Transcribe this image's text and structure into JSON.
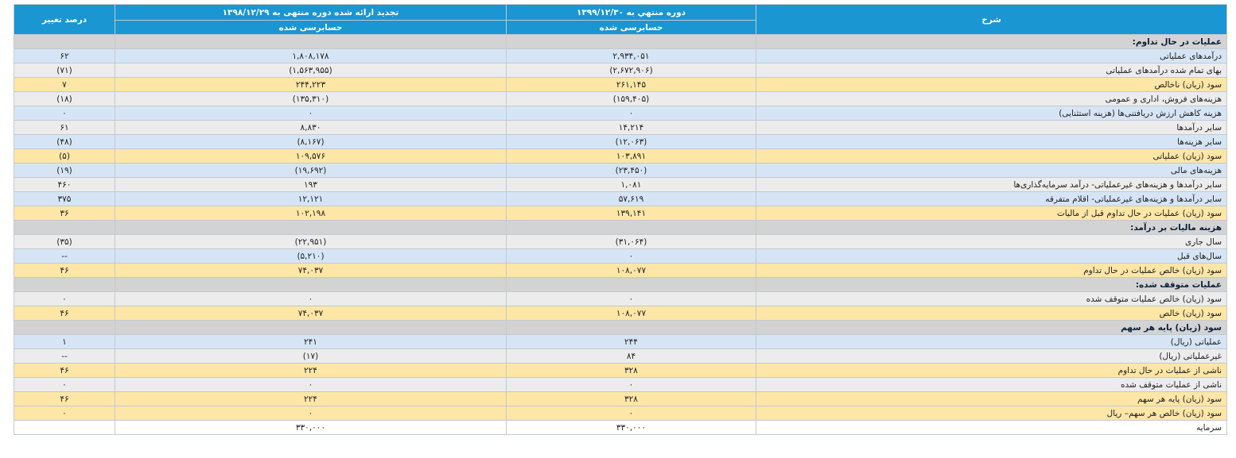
{
  "header": {
    "desc_label": "شرح",
    "current_period": "دوره منتهي به ۱۳۹۹/۱۲/۳۰",
    "previous_period": "تجدید ارائه شده دوره منتهی به ۱۳۹۸/۱۲/۲۹",
    "change_label": "درصد تغییر",
    "current_audit": "حسابرسی شده",
    "previous_audit": "حسابرسی شده"
  },
  "rows": [
    {
      "kind": "section",
      "desc": "عملیات در حال تداوم:",
      "cur": "",
      "prev": "",
      "pct": ""
    },
    {
      "kind": "blue",
      "desc": "درآمدهای عملیاتی",
      "cur": "۲,۹۳۴,۰۵۱",
      "prev": "۱,۸۰۸,۱۷۸",
      "pct": "۶۲"
    },
    {
      "kind": "gray",
      "desc": "بهای تمام شده درآمدهای عملیاتی",
      "cur": "(۲,۶۷۲,۹۰۶)",
      "prev": "(۱,۵۶۳,۹۵۵)",
      "pct": "(۷۱)"
    },
    {
      "kind": "yellow",
      "desc": "سود (زیان) ناخالص",
      "cur": "۲۶۱,۱۴۵",
      "prev": "۲۴۴,۲۲۳",
      "pct": "۷"
    },
    {
      "kind": "gray",
      "desc": "هزینه‌های فروش، اداری و عمومی",
      "cur": "(۱۵۹,۴۰۵)",
      "prev": "(۱۳۵,۳۱۰)",
      "pct": "(۱۸)"
    },
    {
      "kind": "blue",
      "desc": "هزینه کاهش ارزش دریافتنی‌ها (هزینه استثنایی)",
      "cur": "۰",
      "prev": "۰",
      "pct": "۰"
    },
    {
      "kind": "gray",
      "desc": "سایر درآمدها",
      "cur": "۱۴,۲۱۴",
      "prev": "۸,۸۳۰",
      "pct": "۶۱"
    },
    {
      "kind": "blue",
      "desc": "سایر هزینه‌ها",
      "cur": "(۱۲,۰۶۳)",
      "prev": "(۸,۱۶۷)",
      "pct": "(۴۸)"
    },
    {
      "kind": "yellow",
      "desc": "سود (زیان) عملیاتی",
      "cur": "۱۰۳,۸۹۱",
      "prev": "۱۰۹,۵۷۶",
      "pct": "(۵)"
    },
    {
      "kind": "blue",
      "desc": "هزینه‌های مالی",
      "cur": "(۲۳,۴۵۰)",
      "prev": "(۱۹,۶۹۲)",
      "pct": "(۱۹)"
    },
    {
      "kind": "gray",
      "desc": "سایر درآمدها و هزینه‌های غیرعملیاتی- درآمد سرمایه‌گذاری‌ها",
      "cur": "۱,۰۸۱",
      "prev": "۱۹۳",
      "pct": "۴۶۰"
    },
    {
      "kind": "blue",
      "desc": "سایر درآمدها و هزینه‌های غیرعملیاتی- اقلام متفرقه",
      "cur": "۵۷,۶۱۹",
      "prev": "۱۲,۱۲۱",
      "pct": "۳۷۵"
    },
    {
      "kind": "yellow",
      "desc": "سود (زیان) عملیات در حال تداوم قبل از مالیات",
      "cur": "۱۳۹,۱۴۱",
      "prev": "۱۰۲,۱۹۸",
      "pct": "۳۶"
    },
    {
      "kind": "section",
      "desc": "هزینه مالیات بر درآمد:",
      "cur": "",
      "prev": "",
      "pct": ""
    },
    {
      "kind": "gray",
      "desc": "سال جاری",
      "cur": "(۳۱,۰۶۴)",
      "prev": "(۲۲,۹۵۱)",
      "pct": "(۳۵)"
    },
    {
      "kind": "blue",
      "desc": "سال‌های قبل",
      "cur": "۰",
      "prev": "(۵,۲۱۰)",
      "pct": "--"
    },
    {
      "kind": "yellow",
      "desc": "سود (زیان) خالص عملیات در حال تداوم",
      "cur": "۱۰۸,۰۷۷",
      "prev": "۷۴,۰۳۷",
      "pct": "۴۶"
    },
    {
      "kind": "section",
      "desc": "عملیات متوقف شده:",
      "cur": "",
      "prev": "",
      "pct": ""
    },
    {
      "kind": "gray",
      "desc": "سود (زیان) خالص عملیات متوقف شده",
      "cur": "۰",
      "prev": "۰",
      "pct": "۰"
    },
    {
      "kind": "yellow",
      "desc": "سود (زیان) خالص",
      "cur": "۱۰۸,۰۷۷",
      "prev": "۷۴,۰۳۷",
      "pct": "۴۶"
    },
    {
      "kind": "section",
      "desc": "سود (زیان) پایه هر سهم",
      "cur": "",
      "prev": "",
      "pct": ""
    },
    {
      "kind": "blue",
      "desc": "عملیاتی (ریال)",
      "cur": "۲۴۴",
      "prev": "۲۴۱",
      "pct": "۱"
    },
    {
      "kind": "gray",
      "desc": "غیرعملیاتی (ریال)",
      "cur": "۸۴",
      "prev": "(۱۷)",
      "pct": "--"
    },
    {
      "kind": "yellow",
      "desc": "ناشی از عملیات در حال تداوم",
      "cur": "۳۲۸",
      "prev": "۲۲۴",
      "pct": "۴۶"
    },
    {
      "kind": "gray",
      "desc": "ناشی از عملیات متوقف شده",
      "cur": "۰",
      "prev": "۰",
      "pct": "۰"
    },
    {
      "kind": "yellow",
      "desc": "سود (زیان) پایه هر سهم",
      "cur": "۳۲۸",
      "prev": "۲۲۴",
      "pct": "۴۶"
    },
    {
      "kind": "yellow",
      "desc": "سود (زیان) خالص هر سهم– ریال",
      "cur": "۰",
      "prev": "۰",
      "pct": "۰"
    },
    {
      "kind": "white",
      "desc": "سرمایه",
      "cur": "۳۳۰,۰۰۰",
      "prev": "۳۳۰,۰۰۰",
      "pct": ""
    }
  ]
}
